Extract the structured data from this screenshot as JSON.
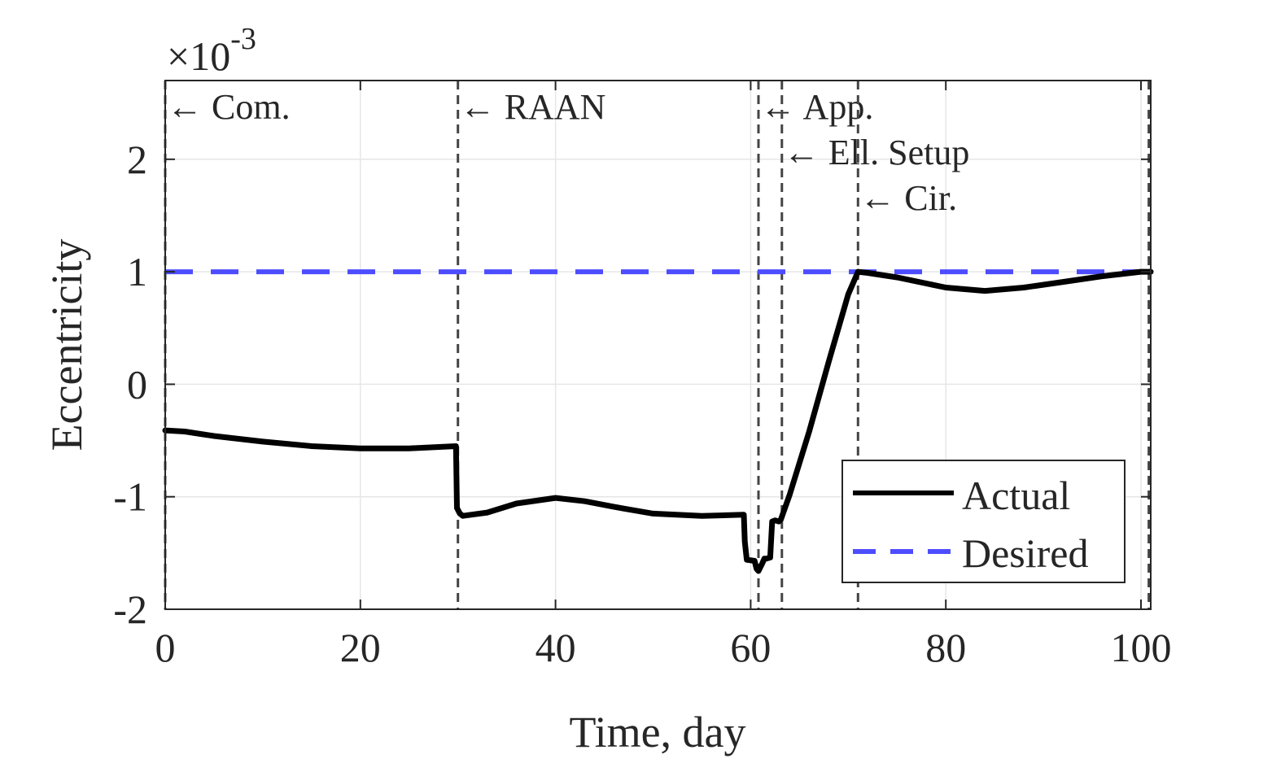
{
  "chart_data": {
    "type": "line",
    "title": "",
    "xlabel": "Time, day",
    "ylabel": "Eccentricity",
    "exponent_label": {
      "base": "×10",
      "power": "-3"
    },
    "xlim": [
      0,
      101
    ],
    "ylim": [
      -2,
      2.7
    ],
    "x_ticks": [
      0,
      20,
      40,
      60,
      80,
      100
    ],
    "x_tick_labels": [
      "0",
      "20",
      "40",
      "60",
      "80",
      "100"
    ],
    "y_ticks": [
      -2,
      -1,
      0,
      1,
      2
    ],
    "y_tick_labels": [
      "-2",
      "-1",
      "0",
      "1",
      "2"
    ],
    "grid": true,
    "legend_position": "bottom-right",
    "colors": {
      "actual": "#000000",
      "desired": "#4d4dff",
      "phase_line": "#444444",
      "grid": "#e6e6e6",
      "axis": "#262626"
    },
    "phase_markers": [
      {
        "x": 0.0,
        "label": "← Com.",
        "row": 0
      },
      {
        "x": 30.0,
        "label": "← RAAN",
        "row": 0
      },
      {
        "x": 60.8,
        "label": "← App.",
        "row": 0
      },
      {
        "x": 63.2,
        "label": "← Ell. Setup",
        "row": 1
      },
      {
        "x": 71.0,
        "label": "← Cir.",
        "row": 2
      },
      {
        "x": 100.8,
        "label": "",
        "row": 0
      }
    ],
    "series": [
      {
        "name": "Actual",
        "style": "solid",
        "x": [
          0,
          2,
          5,
          10,
          15,
          20,
          25,
          29.8,
          29.9,
          30.2,
          30.5,
          33,
          36,
          40,
          43,
          46,
          50,
          55,
          59.3,
          59.4,
          59.6,
          60.4,
          60.6,
          60.8,
          61.2,
          61.4,
          61.6,
          62.0,
          62.2,
          62.5,
          62.9,
          63.1,
          64,
          66,
          68,
          70,
          71,
          72,
          75,
          80,
          84,
          88,
          92,
          96,
          100,
          101
        ],
        "y": [
          -0.41,
          -0.42,
          -0.46,
          -0.51,
          -0.55,
          -0.57,
          -0.57,
          -0.55,
          -1.1,
          -1.15,
          -1.17,
          -1.14,
          -1.06,
          -1.01,
          -1.04,
          -1.09,
          -1.15,
          -1.17,
          -1.16,
          -1.4,
          -1.56,
          -1.57,
          -1.64,
          -1.66,
          -1.59,
          -1.55,
          -1.55,
          -1.54,
          -1.22,
          -1.21,
          -1.22,
          -1.2,
          -0.98,
          -0.42,
          0.2,
          0.8,
          1.0,
          0.99,
          0.95,
          0.86,
          0.83,
          0.86,
          0.91,
          0.96,
          1.0,
          1.0
        ]
      },
      {
        "name": "Desired",
        "style": "dashed",
        "x": [
          0,
          101
        ],
        "y": [
          1.0,
          1.0
        ]
      }
    ]
  }
}
